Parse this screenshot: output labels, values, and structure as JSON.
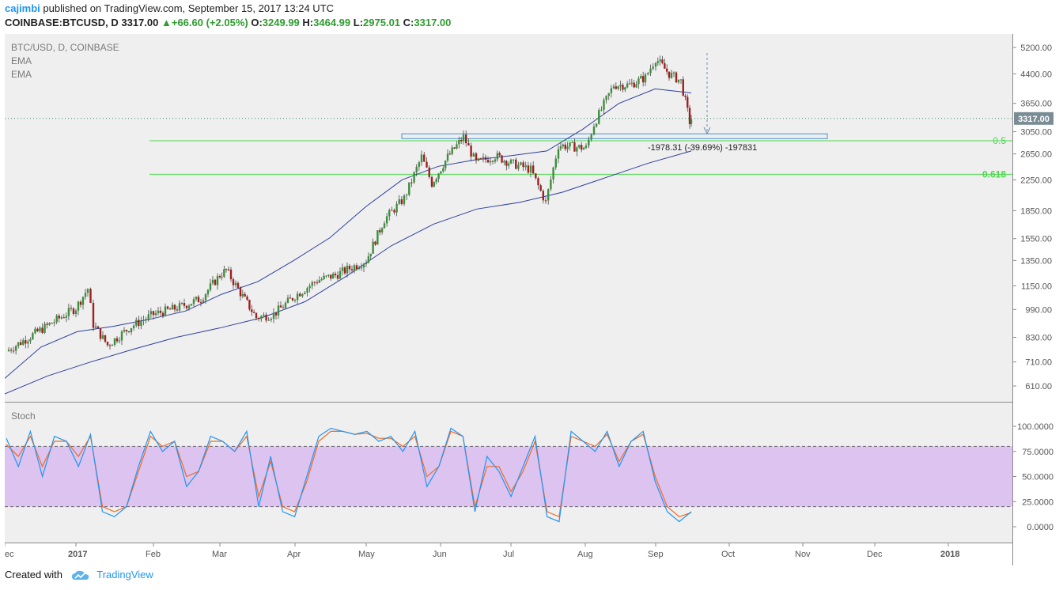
{
  "header": {
    "publisher": "cajimbi",
    "published_text": "published on TradingView.com, September 15, 2017 13:24 UTC",
    "symbol_line": "COINBASE:BTCUSD, D",
    "price": "3317.00",
    "change": "+66.60 (+2.05%)",
    "open_label": "O:",
    "open": "3249.99",
    "high_label": "H:",
    "high": "3464.99",
    "low_label": "L:",
    "low": "2975.01",
    "close_label": "C:",
    "close": "3317.00"
  },
  "legend": {
    "title": "BTC/USD, D, COINBASE",
    "ema1": "EMA",
    "ema2": "EMA"
  },
  "stoch_label": "Stoch",
  "footer": {
    "created_with": "Created with",
    "brand": "TradingView"
  },
  "colors": {
    "up": "#3c8f3c",
    "down": "#a01e1e",
    "ema": "#2e3f9e",
    "fib": "#4cd94c",
    "stoch_k": "#2196f3",
    "stoch_d": "#f26b21",
    "stoch_band": "#dcc3f0",
    "price_tag": "#7a8c94"
  },
  "chart_data": {
    "type": "candlestick",
    "title": "BTC/USD, D, COINBASE",
    "price_axis": {
      "scale": "log",
      "ticks": [
        "5200.00",
        "4400.00",
        "3650.00",
        "3050.00",
        "2650.00",
        "2250.00",
        "1850.00",
        "1550.00",
        "1350.00",
        "1150.00",
        "990.00",
        "830.00",
        "710.00",
        "610.00"
      ],
      "range": [
        520,
        5800
      ]
    },
    "time_axis": {
      "ticks": [
        "ec",
        "2017",
        "Feb",
        "Mar",
        "Apr",
        "May",
        "Jun",
        "Jul",
        "Aug",
        "Sep",
        "Oct",
        "Nov",
        "Dec",
        "2018"
      ]
    },
    "last_price_label": "3317.00",
    "fib_levels": [
      {
        "label": "0.5",
        "price": 2880
      },
      {
        "label": "0.618",
        "price": 2330
      }
    ],
    "measure_annotation": "-1978.31 (-39.69%) -197831",
    "support_zone": {
      "low": 2920,
      "high": 3010
    },
    "ohlc_points": [
      [
        "ec",
        760
      ],
      [
        "Jan 1",
        1000
      ],
      [
        "Jan 5",
        1130
      ],
      [
        "Jan 8",
        900
      ],
      [
        "Jan 12",
        790
      ],
      [
        "Jan 20",
        890
      ],
      [
        "Feb 1",
        960
      ],
      [
        "Feb 10",
        1000
      ],
      [
        "Feb 20",
        1060
      ],
      [
        "Mar 1",
        1230
      ],
      [
        "Mar 3",
        1270
      ],
      [
        "Mar 10",
        1100
      ],
      [
        "Mar 18",
        940
      ],
      [
        "Mar 25",
        960
      ],
      [
        "Apr 1",
        1080
      ],
      [
        "Apr 10",
        1190
      ],
      [
        "Apr 20",
        1230
      ],
      [
        "May 1",
        1350
      ],
      [
        "May 10",
        1750
      ],
      [
        "May 20",
        2000
      ],
      [
        "May 25",
        2600
      ],
      [
        "May 27",
        2200
      ],
      [
        "Jun 5",
        2600
      ],
      [
        "Jun 11",
        2950
      ],
      [
        "Jun 15",
        2500
      ],
      [
        "Jun 25",
        2620
      ],
      [
        "Jul 1",
        2500
      ],
      [
        "Jul 10",
        2400
      ],
      [
        "Jul 16",
        1950
      ],
      [
        "Jul 20",
        2800
      ],
      [
        "Aug 1",
        2750
      ],
      [
        "Aug 5",
        3200
      ],
      [
        "Aug 14",
        4100
      ],
      [
        "Aug 20",
        4100
      ],
      [
        "Aug 25",
        4300
      ],
      [
        "Sep 1",
        4850
      ],
      [
        "Sep 5",
        4400
      ],
      [
        "Sep 10",
        4200
      ],
      [
        "Sep 14",
        3250
      ],
      [
        "Sep 15",
        3317
      ]
    ],
    "ema_fast_points": [
      640,
      780,
      860,
      890,
      930,
      980,
      1090,
      1180,
      1350,
      1560,
      1900,
      2250,
      2450,
      2550,
      2620,
      2700,
      3100,
      3650,
      4000,
      3900
    ],
    "ema_slow_points": [
      580,
      650,
      710,
      770,
      830,
      880,
      940,
      1040,
      1230,
      1480,
      1700,
      1870,
      1950,
      2080,
      2280,
      2500,
      2700
    ],
    "stochastic": {
      "label": "Stoch",
      "ticks": [
        "100.0000",
        "75.0000",
        "50.0000",
        "25.0000",
        "0.0000"
      ],
      "band": [
        20,
        80
      ],
      "k": [
        88,
        60,
        95,
        50,
        90,
        85,
        60,
        92,
        15,
        10,
        20,
        60,
        95,
        75,
        85,
        40,
        55,
        90,
        85,
        75,
        95,
        20,
        70,
        15,
        10,
        50,
        90,
        98,
        95,
        92,
        95,
        85,
        90,
        75,
        95,
        40,
        60,
        98,
        90,
        15,
        70,
        55,
        30,
        60,
        90,
        10,
        5,
        95,
        85,
        75,
        95,
        60,
        85,
        95,
        45,
        15,
        5,
        15
      ],
      "d": [
        82,
        70,
        90,
        60,
        85,
        85,
        70,
        90,
        20,
        15,
        20,
        55,
        90,
        80,
        85,
        50,
        55,
        85,
        85,
        75,
        90,
        30,
        65,
        20,
        15,
        45,
        85,
        95,
        95,
        92,
        93,
        88,
        88,
        80,
        90,
        50,
        60,
        95,
        90,
        20,
        60,
        60,
        35,
        55,
        85,
        15,
        10,
        90,
        85,
        80,
        92,
        65,
        85,
        92,
        50,
        20,
        10,
        14
      ]
    }
  }
}
